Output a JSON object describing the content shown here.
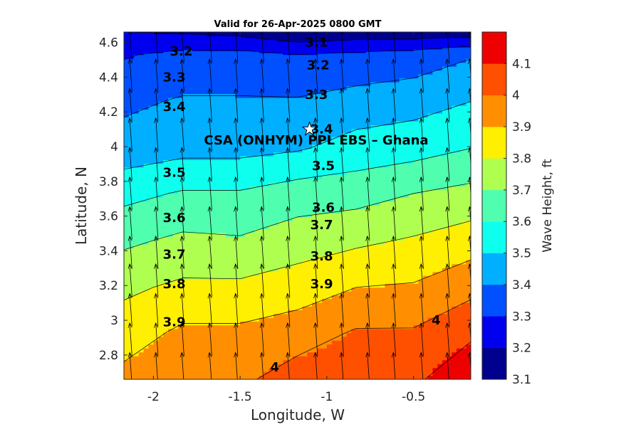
{
  "chart_data": {
    "type": "contour",
    "title": "Valid for 26-Apr-2025 0800 GMT",
    "xlabel": "Longitude, W",
    "ylabel": "Latitude, N",
    "colorbar_label": "Wave Height, ft",
    "xlim": [
      -2.17,
      -0.17
    ],
    "ylim": [
      2.66,
      4.66
    ],
    "xticks": [
      -2,
      -1.5,
      -1,
      -0.5
    ],
    "xtick_labels": [
      "-2",
      "-1.5",
      "-1",
      "-0.5"
    ],
    "yticks": [
      2.8,
      3.0,
      3.2,
      3.4,
      3.6,
      3.8,
      4.0,
      4.2,
      4.4,
      4.6
    ],
    "ytick_labels": [
      "2.8",
      "3",
      "3.2",
      "3.4",
      "3.6",
      "3.8",
      "4",
      "4.2",
      "4.4",
      "4.6"
    ],
    "colorbar": {
      "levels": [
        3.1,
        3.2,
        3.3,
        3.4,
        3.5,
        3.6,
        3.7,
        3.8,
        3.9,
        4.0,
        4.1,
        4.2
      ],
      "tick_labels": [
        "3.1",
        "3.2",
        "3.3",
        "3.4",
        "3.5",
        "3.6",
        "3.7",
        "3.8",
        "3.9",
        "4",
        "4.1"
      ],
      "colors": [
        "#00008f",
        "#0000ef",
        "#0050ff",
        "#00afff",
        "#0fffef",
        "#4fffaf",
        "#afff50",
        "#ffef00",
        "#ff8f00",
        "#ff5000",
        "#ef0000"
      ]
    },
    "grid": {
      "lon": [
        -2.17,
        -1.83,
        -1.5,
        -1.17,
        -0.83,
        -0.5,
        -0.17
      ],
      "lat": [
        2.66,
        2.93,
        3.19,
        3.46,
        3.73,
        3.99,
        4.26,
        4.53,
        4.66
      ],
      "wave_height_ft": [
        [
          3.93,
          3.97,
          3.98,
          4.05,
          4.05,
          4.08,
          4.18
        ],
        [
          3.85,
          3.92,
          3.92,
          3.95,
          4.01,
          4.01,
          4.08
        ],
        [
          3.78,
          3.82,
          3.82,
          3.85,
          3.9,
          3.91,
          3.97
        ],
        [
          3.68,
          3.72,
          3.71,
          3.75,
          3.78,
          3.81,
          3.85
        ],
        [
          3.57,
          3.61,
          3.61,
          3.65,
          3.66,
          3.7,
          3.73
        ],
        [
          3.44,
          3.47,
          3.47,
          3.49,
          3.54,
          3.56,
          3.6
        ],
        [
          3.38,
          3.41,
          3.41,
          3.41,
          3.44,
          3.46,
          3.5
        ],
        [
          3.29,
          3.33,
          3.33,
          3.3,
          3.32,
          3.34,
          3.39
        ],
        [
          3.2,
          3.19,
          3.17,
          3.12,
          3.14,
          3.14,
          3.15
        ]
      ]
    },
    "contour_labels": [
      {
        "text": "3.1",
        "lon": -1.06,
        "lat": 4.6
      },
      {
        "text": "3.2",
        "lon": -1.84,
        "lat": 4.55
      },
      {
        "text": "3.2",
        "lon": -1.05,
        "lat": 4.47
      },
      {
        "text": "3.3",
        "lon": -1.88,
        "lat": 4.4
      },
      {
        "text": "3.3",
        "lon": -1.06,
        "lat": 4.3
      },
      {
        "text": "3.4",
        "lon": -1.88,
        "lat": 4.23
      },
      {
        "text": "3.4",
        "lon": -1.03,
        "lat": 4.1
      },
      {
        "text": "3.5",
        "lon": -1.88,
        "lat": 3.85
      },
      {
        "text": "3.5",
        "lon": -1.02,
        "lat": 3.89
      },
      {
        "text": "3.6",
        "lon": -1.88,
        "lat": 3.59
      },
      {
        "text": "3.6",
        "lon": -1.02,
        "lat": 3.65
      },
      {
        "text": "3.7",
        "lon": -1.88,
        "lat": 3.38
      },
      {
        "text": "3.7",
        "lon": -1.03,
        "lat": 3.55
      },
      {
        "text": "3.8",
        "lon": -1.88,
        "lat": 3.21
      },
      {
        "text": "3.8",
        "lon": -1.03,
        "lat": 3.37
      },
      {
        "text": "3.9",
        "lon": -1.88,
        "lat": 2.99
      },
      {
        "text": "3.9",
        "lon": -1.03,
        "lat": 3.21
      },
      {
        "text": "4",
        "lon": -1.3,
        "lat": 2.73
      },
      {
        "text": "4",
        "lon": -0.37,
        "lat": 3.0
      }
    ],
    "vectors": {
      "lon": [
        -2.13,
        -1.98,
        -1.83,
        -1.67,
        -1.52,
        -1.37,
        -1.22,
        -1.06,
        -0.91,
        -0.76,
        -0.61,
        -0.45,
        -0.3,
        -0.17
      ],
      "lat": [
        2.72,
        2.89,
        3.06,
        3.23,
        3.39,
        3.56,
        3.73,
        3.9,
        4.07,
        4.24,
        4.41,
        4.58
      ],
      "direction_deg_from_north": 0,
      "tilt_deg": -4
    },
    "site": {
      "label": "CSA (ONHYM) PPL EBS  – Ghana",
      "lon": -1.1,
      "lat": 4.1,
      "marker": "star"
    }
  }
}
